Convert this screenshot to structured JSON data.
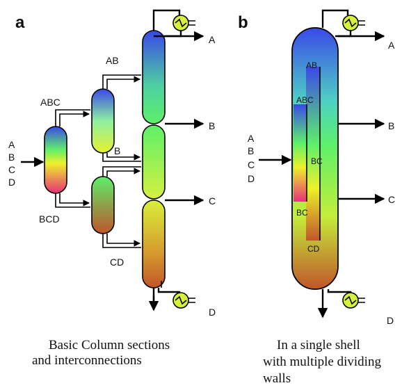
{
  "panels": {
    "a": {
      "letter": "a",
      "feed_labels": [
        "A",
        "B",
        "C",
        "D"
      ],
      "stream_labels": {
        "abc": "ABC",
        "bcd": "BCD",
        "ab": "AB",
        "b": "B",
        "cd": "CD"
      },
      "product_labels": [
        "A",
        "B",
        "C",
        "D"
      ],
      "caption": [
        "Basic Column sections",
        "and interconnections"
      ]
    },
    "b": {
      "letter": "b",
      "feed_labels": [
        "A",
        "B",
        "C",
        "D"
      ],
      "section_labels": {
        "ab": "AB",
        "abc": "ABC",
        "bc_mid": "BC",
        "bc_low": "BC",
        "cd": "CD"
      },
      "product_labels": [
        "A",
        "B",
        "C",
        "D"
      ],
      "caption": [
        "In a single shell",
        "with multiple dividing",
        "walls"
      ]
    }
  },
  "colors": {
    "top": "#3a49e8",
    "cyan": "#4fd0c4",
    "green": "#5ef06a",
    "yellow": "#eef02a",
    "magenta": "#e8307a",
    "bottom": "#c0552a",
    "line": "#000000"
  },
  "icons": [
    "condenser-icon",
    "reboiler-icon"
  ]
}
